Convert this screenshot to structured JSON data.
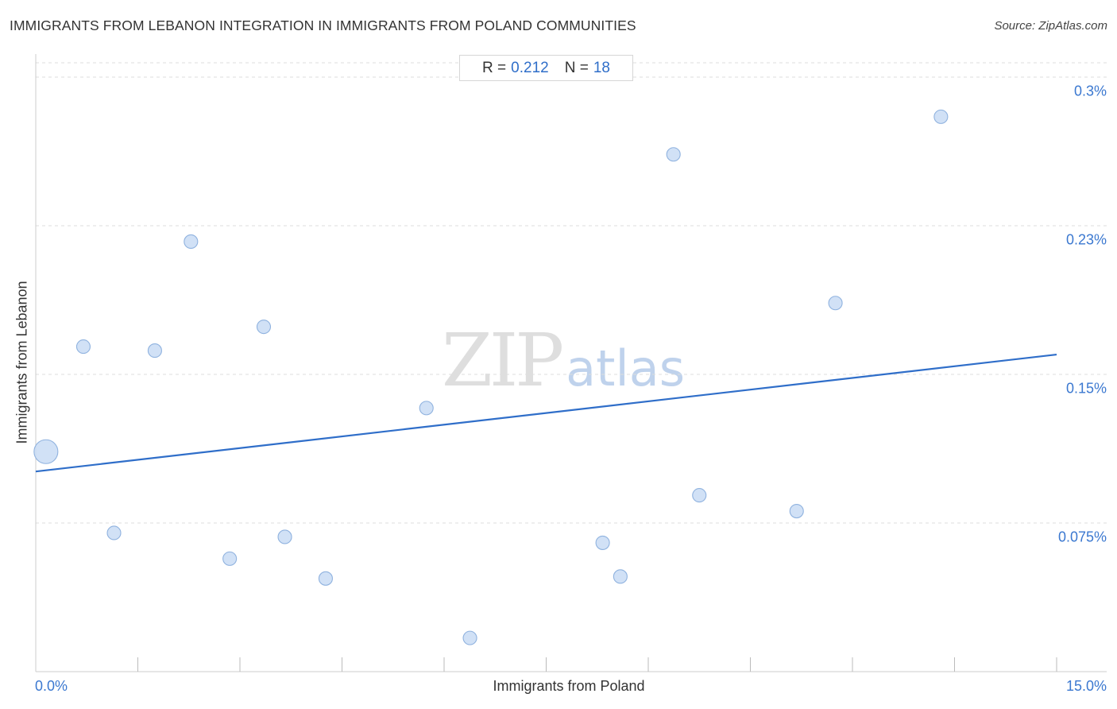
{
  "header": {
    "title": "IMMIGRANTS FROM LEBANON INTEGRATION IN IMMIGRANTS FROM POLAND COMMUNITIES",
    "source": "Source: ZipAtlas.com"
  },
  "stats": {
    "r_label": "R =",
    "r_value": "0.212",
    "n_label": "N =",
    "n_value": "18"
  },
  "watermark": {
    "zip": "ZIP",
    "atlas": "atlas"
  },
  "colors": {
    "point_fill": "#c9dcf4",
    "point_stroke": "#8fb2df",
    "trend_line": "#2f6ec9",
    "grid": "#dddddd",
    "tick_label": "#3b78d0"
  },
  "chart_data": {
    "type": "scatter",
    "title": "IMMIGRANTS FROM LEBANON INTEGRATION IN IMMIGRANTS FROM POLAND COMMUNITIES",
    "xlabel": "Immigrants from Poland",
    "ylabel": "Immigrants from Lebanon",
    "xlim": [
      0,
      15
    ],
    "ylim": [
      0,
      0.3
    ],
    "x_tick_labels": [
      "0.0%",
      "15.0%"
    ],
    "y_ticks": [
      {
        "value": 0.075,
        "label": "0.075%"
      },
      {
        "value": 0.15,
        "label": "0.15%"
      },
      {
        "value": 0.225,
        "label": "0.23%"
      },
      {
        "value": 0.3,
        "label": "0.3%"
      }
    ],
    "grid": true,
    "r": 0.212,
    "n": 18,
    "trend_line": {
      "x": [
        0,
        15
      ],
      "y": [
        0.101,
        0.16
      ]
    },
    "points": [
      {
        "x": 0.15,
        "y": 0.111,
        "size": 3
      },
      {
        "x": 0.7,
        "y": 0.164,
        "size": 1
      },
      {
        "x": 1.15,
        "y": 0.07,
        "size": 1
      },
      {
        "x": 1.75,
        "y": 0.162,
        "size": 1
      },
      {
        "x": 2.28,
        "y": 0.217,
        "size": 1
      },
      {
        "x": 2.85,
        "y": 0.057,
        "size": 1
      },
      {
        "x": 3.35,
        "y": 0.174,
        "size": 1
      },
      {
        "x": 3.66,
        "y": 0.068,
        "size": 1
      },
      {
        "x": 4.26,
        "y": 0.047,
        "size": 1
      },
      {
        "x": 5.74,
        "y": 0.133,
        "size": 1
      },
      {
        "x": 6.38,
        "y": 0.017,
        "size": 1
      },
      {
        "x": 8.33,
        "y": 0.065,
        "size": 1
      },
      {
        "x": 8.59,
        "y": 0.048,
        "size": 1
      },
      {
        "x": 9.37,
        "y": 0.261,
        "size": 1
      },
      {
        "x": 9.75,
        "y": 0.089,
        "size": 1
      },
      {
        "x": 11.18,
        "y": 0.081,
        "size": 1
      },
      {
        "x": 11.75,
        "y": 0.186,
        "size": 1
      },
      {
        "x": 13.3,
        "y": 0.28,
        "size": 1
      }
    ]
  }
}
